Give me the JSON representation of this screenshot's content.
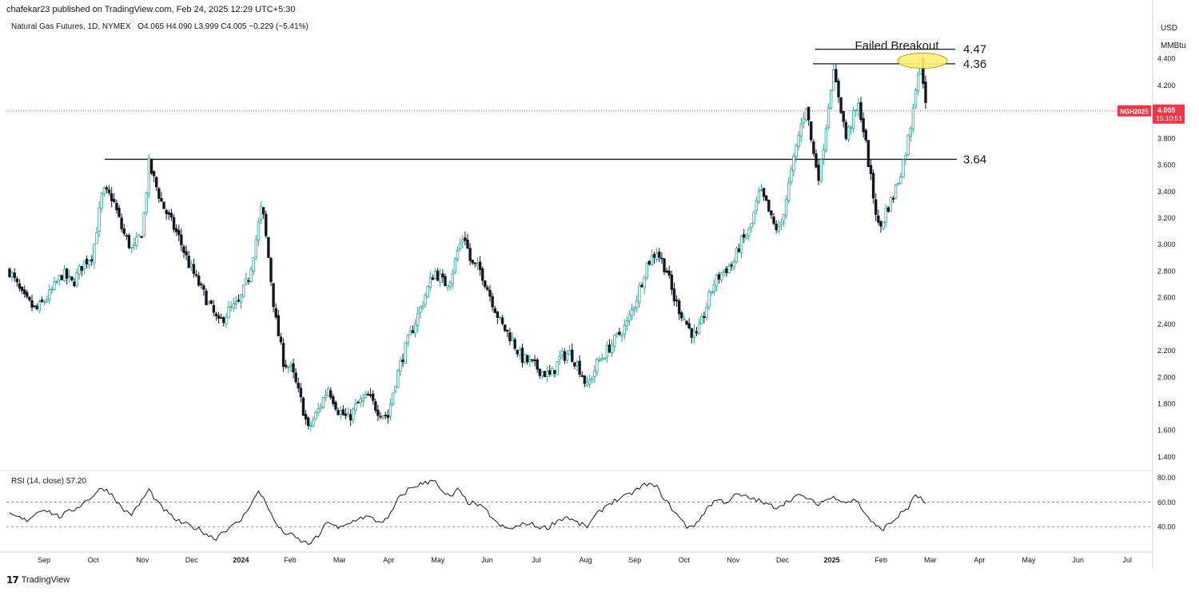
{
  "header": {
    "publisher": "chafekar23 published on TradingView.com, Feb 24, 2025 12:29 UTC+5:30"
  },
  "legend": {
    "symbol": "Natural Gas Futures, 1D, NYMEX",
    "ohlc": "O4.065  H4.090  L3.999  C4.005  −0.229 (−5.41%)"
  },
  "price_axis": {
    "currency": "USD",
    "unit": "MMBtu",
    "ticks": [
      "4.400",
      "4.200",
      "4.000",
      "3.800",
      "3.600",
      "3.400",
      "3.200",
      "3.000",
      "2.800",
      "2.600",
      "2.400",
      "2.200",
      "2.000",
      "1.800",
      "1.600",
      "1.400"
    ],
    "tick_values": [
      4.4,
      4.2,
      4.0,
      3.8,
      3.6,
      3.4,
      3.2,
      3.0,
      2.8,
      2.6,
      2.4,
      2.2,
      2.0,
      1.8,
      1.6,
      1.4
    ]
  },
  "price_tag": {
    "symbol": "NGH2025",
    "price": "4.005",
    "countdown": "15:10:51",
    "value": 4.005
  },
  "rsi": {
    "label": "RSI (14, close)  57.20",
    "ticks": [
      "80.00",
      "60.00",
      "40.00"
    ],
    "tick_values": [
      80,
      60,
      40
    ]
  },
  "time_axis": {
    "labels": [
      "Sep",
      "Oct",
      "Nov",
      "Dec",
      "2024",
      "Feb",
      "Mar",
      "Apr",
      "May",
      "Jun",
      "Jul",
      "Aug",
      "Sep",
      "Oct",
      "Nov",
      "Dec",
      "2025",
      "Feb",
      "Mar",
      "Apr",
      "May",
      "Jun",
      "Jul"
    ]
  },
  "annotations": {
    "title": "Failed Breakout",
    "lines": [
      {
        "label": "4.47",
        "value": 4.47
      },
      {
        "label": "4.36",
        "value": 4.36
      },
      {
        "label": "3.64",
        "value": 3.64
      }
    ]
  },
  "footer": {
    "brand": "TradingView"
  },
  "colors": {
    "up": "#26a69a",
    "down": "#131722",
    "price_tag": "#f23645",
    "highlight": "#fff176"
  },
  "chart_data": {
    "type": "candlestick",
    "price_ylim": [
      1.3,
      4.6
    ],
    "rsi_ylim": [
      20,
      85
    ],
    "price_path": [
      [
        0,
        2.8
      ],
      [
        8,
        2.6
      ],
      [
        16,
        2.5
      ],
      [
        24,
        2.62
      ],
      [
        32,
        2.78
      ],
      [
        38,
        2.7
      ],
      [
        44,
        2.85
      ],
      [
        50,
        2.92
      ],
      [
        56,
        3.4
      ],
      [
        62,
        3.35
      ],
      [
        68,
        3.1
      ],
      [
        74,
        2.95
      ],
      [
        80,
        3.1
      ],
      [
        84,
        3.6
      ],
      [
        88,
        3.45
      ],
      [
        92,
        3.3
      ],
      [
        96,
        3.2
      ],
      [
        102,
        3.05
      ],
      [
        108,
        2.85
      ],
      [
        114,
        2.7
      ],
      [
        120,
        2.55
      ],
      [
        126,
        2.4
      ],
      [
        132,
        2.5
      ],
      [
        138,
        2.55
      ],
      [
        144,
        2.75
      ],
      [
        148,
        3.0
      ],
      [
        152,
        3.3
      ],
      [
        156,
        2.9
      ],
      [
        160,
        2.45
      ],
      [
        165,
        2.12
      ],
      [
        170,
        2.05
      ],
      [
        176,
        1.8
      ],
      [
        180,
        1.6
      ],
      [
        186,
        1.75
      ],
      [
        192,
        1.92
      ],
      [
        198,
        1.75
      ],
      [
        204,
        1.68
      ],
      [
        210,
        1.8
      ],
      [
        216,
        1.85
      ],
      [
        222,
        1.75
      ],
      [
        228,
        1.7
      ],
      [
        232,
        1.95
      ],
      [
        238,
        2.2
      ],
      [
        244,
        2.4
      ],
      [
        250,
        2.6
      ],
      [
        256,
        2.8
      ],
      [
        262,
        2.7
      ],
      [
        266,
        2.75
      ],
      [
        270,
        2.95
      ],
      [
        274,
        3.08
      ],
      [
        278,
        2.85
      ],
      [
        284,
        2.8
      ],
      [
        290,
        2.6
      ],
      [
        296,
        2.4
      ],
      [
        302,
        2.3
      ],
      [
        308,
        2.15
      ],
      [
        314,
        2.1
      ],
      [
        320,
        2.05
      ],
      [
        326,
        2.0
      ],
      [
        332,
        2.15
      ],
      [
        338,
        2.18
      ],
      [
        344,
        2.05
      ],
      [
        348,
        1.92
      ],
      [
        354,
        2.1
      ],
      [
        360,
        2.2
      ],
      [
        366,
        2.3
      ],
      [
        372,
        2.4
      ],
      [
        378,
        2.6
      ],
      [
        384,
        2.85
      ],
      [
        390,
        2.95
      ],
      [
        396,
        2.8
      ],
      [
        400,
        2.6
      ],
      [
        406,
        2.45
      ],
      [
        410,
        2.35
      ],
      [
        414,
        2.3
      ],
      [
        418,
        2.45
      ],
      [
        424,
        2.7
      ],
      [
        430,
        2.8
      ],
      [
        436,
        2.85
      ],
      [
        440,
        3.0
      ],
      [
        446,
        3.1
      ],
      [
        452,
        3.4
      ],
      [
        456,
        3.3
      ],
      [
        460,
        3.15
      ],
      [
        464,
        3.1
      ],
      [
        468,
        3.35
      ],
      [
        472,
        3.6
      ],
      [
        476,
        3.85
      ],
      [
        480,
        4.05
      ],
      [
        484,
        3.7
      ],
      [
        488,
        3.5
      ],
      [
        492,
        3.9
      ],
      [
        496,
        4.3
      ],
      [
        500,
        4.1
      ],
      [
        504,
        3.8
      ],
      [
        508,
        3.95
      ],
      [
        512,
        4.05
      ],
      [
        516,
        3.75
      ],
      [
        520,
        3.4
      ],
      [
        524,
        3.1
      ],
      [
        528,
        3.25
      ],
      [
        532,
        3.35
      ],
      [
        536,
        3.5
      ],
      [
        540,
        3.7
      ],
      [
        543,
        3.9
      ],
      [
        546,
        4.2
      ],
      [
        549,
        4.38
      ],
      [
        552,
        4.1
      ]
    ],
    "rsi_path": [
      [
        0,
        50
      ],
      [
        10,
        45
      ],
      [
        20,
        55
      ],
      [
        30,
        48
      ],
      [
        40,
        55
      ],
      [
        50,
        65
      ],
      [
        56,
        72
      ],
      [
        62,
        66
      ],
      [
        68,
        54
      ],
      [
        74,
        50
      ],
      [
        80,
        62
      ],
      [
        84,
        70
      ],
      [
        90,
        58
      ],
      [
        96,
        50
      ],
      [
        102,
        44
      ],
      [
        108,
        41
      ],
      [
        114,
        38
      ],
      [
        120,
        33
      ],
      [
        124,
        30
      ],
      [
        128,
        36
      ],
      [
        134,
        40
      ],
      [
        140,
        46
      ],
      [
        144,
        56
      ],
      [
        150,
        68
      ],
      [
        154,
        62
      ],
      [
        158,
        48
      ],
      [
        164,
        36
      ],
      [
        170,
        33
      ],
      [
        176,
        28
      ],
      [
        180,
        26
      ],
      [
        186,
        32
      ],
      [
        192,
        45
      ],
      [
        198,
        38
      ],
      [
        204,
        42
      ],
      [
        210,
        47
      ],
      [
        216,
        48
      ],
      [
        222,
        44
      ],
      [
        228,
        46
      ],
      [
        234,
        62
      ],
      [
        240,
        70
      ],
      [
        246,
        74
      ],
      [
        252,
        76
      ],
      [
        256,
        80
      ],
      [
        260,
        68
      ],
      [
        266,
        64
      ],
      [
        270,
        70
      ],
      [
        276,
        60
      ],
      [
        282,
        58
      ],
      [
        288,
        52
      ],
      [
        294,
        42
      ],
      [
        300,
        38
      ],
      [
        306,
        40
      ],
      [
        312,
        43
      ],
      [
        318,
        40
      ],
      [
        324,
        39
      ],
      [
        330,
        45
      ],
      [
        336,
        48
      ],
      [
        342,
        43
      ],
      [
        348,
        40
      ],
      [
        354,
        50
      ],
      [
        360,
        58
      ],
      [
        366,
        62
      ],
      [
        372,
        65
      ],
      [
        378,
        70
      ],
      [
        384,
        75
      ],
      [
        390,
        72
      ],
      [
        396,
        60
      ],
      [
        402,
        50
      ],
      [
        408,
        40
      ],
      [
        414,
        42
      ],
      [
        420,
        55
      ],
      [
        426,
        62
      ],
      [
        432,
        60
      ],
      [
        438,
        66
      ],
      [
        444,
        64
      ],
      [
        450,
        62
      ],
      [
        456,
        58
      ],
      [
        462,
        56
      ],
      [
        468,
        60
      ],
      [
        474,
        65
      ],
      [
        480,
        64
      ],
      [
        486,
        58
      ],
      [
        492,
        62
      ],
      [
        498,
        64
      ],
      [
        504,
        60
      ],
      [
        510,
        62
      ],
      [
        516,
        50
      ],
      [
        522,
        40
      ],
      [
        526,
        38
      ],
      [
        532,
        44
      ],
      [
        538,
        52
      ],
      [
        542,
        56
      ],
      [
        546,
        66
      ],
      [
        550,
        62
      ],
      [
        552,
        57
      ]
    ],
    "horizontal_levels": [
      4.47,
      4.36,
      3.64
    ],
    "last_price": 4.005,
    "last_rsi": 57.2
  }
}
